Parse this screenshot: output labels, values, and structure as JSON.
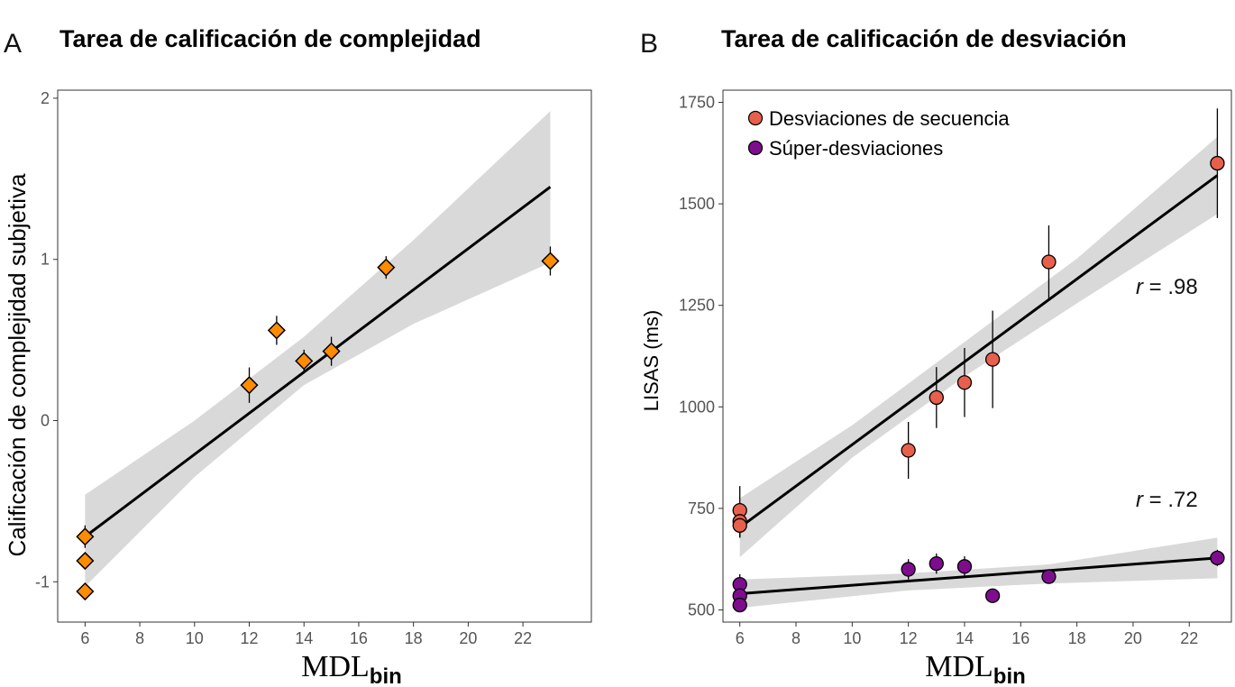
{
  "chart_data": [
    {
      "type": "scatter",
      "panel_label": "A",
      "title": "Tarea de calificación de complejidad",
      "xlabel_main": "MDL",
      "xlabel_sub": "bin",
      "ylabel": "Calificación de complejidad subjetiva",
      "xlim": [
        5,
        24.5
      ],
      "ylim": [
        -1.25,
        2.05
      ],
      "x_ticks": [
        6,
        8,
        10,
        12,
        14,
        16,
        18,
        20,
        22
      ],
      "y_ticks": [
        -1,
        0,
        1,
        2
      ],
      "marker": "diamond",
      "grid": false,
      "series": [
        {
          "color": "#ff8c00",
          "points": [
            {
              "x": 6,
              "y": -0.72,
              "err": 0.07
            },
            {
              "x": 6,
              "y": -0.87,
              "err": 0.05
            },
            {
              "x": 6,
              "y": -1.06,
              "err": 0.04
            },
            {
              "x": 12,
              "y": 0.22,
              "err": 0.11
            },
            {
              "x": 13,
              "y": 0.56,
              "err": 0.09
            },
            {
              "x": 14,
              "y": 0.37,
              "err": 0.07
            },
            {
              "x": 15,
              "y": 0.43,
              "err": 0.09
            },
            {
              "x": 17,
              "y": 0.95,
              "err": 0.07
            },
            {
              "x": 23,
              "y": 0.99,
              "err": 0.09
            }
          ],
          "fit": {
            "x0": 6,
            "y0": -0.72,
            "x1": 23,
            "y1": 1.45
          },
          "band": [
            {
              "x": 6,
              "lo": -1.03,
              "hi": -0.46
            },
            {
              "x": 10,
              "lo": -0.35,
              "hi": 0.0
            },
            {
              "x": 14,
              "lo": 0.22,
              "hi": 0.52
            },
            {
              "x": 18,
              "lo": 0.6,
              "hi": 1.12
            },
            {
              "x": 23,
              "lo": 0.98,
              "hi": 1.92
            }
          ]
        }
      ]
    },
    {
      "type": "scatter",
      "panel_label": "B",
      "title": "Tarea de calificación de desviación",
      "xlabel_main": "MDL",
      "xlabel_sub": "bin",
      "ylabel": "LISAS (ms)",
      "xlim": [
        5.4,
        23.5
      ],
      "ylim": [
        470,
        1780
      ],
      "x_ticks": [
        6,
        8,
        10,
        12,
        14,
        16,
        18,
        20,
        22
      ],
      "y_ticks": [
        500,
        750,
        1000,
        1250,
        1500,
        1750
      ],
      "marker": "circle",
      "grid": false,
      "legend_position": "top-left",
      "annotations": [
        "r = .98",
        "r = .72"
      ],
      "series": [
        {
          "name": "Desviaciones de secuencia",
          "color": "#e8604c",
          "points": [
            {
              "x": 6,
              "y": 745,
              "err": 60
            },
            {
              "x": 6,
              "y": 718,
              "err": 40
            },
            {
              "x": 6,
              "y": 708,
              "err": 30
            },
            {
              "x": 12,
              "y": 893,
              "err": 70
            },
            {
              "x": 13,
              "y": 1023,
              "err": 75
            },
            {
              "x": 14,
              "y": 1060,
              "err": 85
            },
            {
              "x": 15,
              "y": 1117,
              "err": 120
            },
            {
              "x": 17,
              "y": 1357,
              "err": 90
            },
            {
              "x": 23,
              "y": 1600,
              "err": 135
            }
          ],
          "fit": {
            "x0": 6,
            "y0": 703,
            "x1": 23,
            "y1": 1570
          },
          "band": [
            {
              "x": 6,
              "lo": 630,
              "hi": 775
            },
            {
              "x": 10,
              "lo": 875,
              "hi": 955
            },
            {
              "x": 14,
              "lo": 1075,
              "hi": 1160
            },
            {
              "x": 18,
              "lo": 1255,
              "hi": 1365
            },
            {
              "x": 23,
              "lo": 1475,
              "hi": 1665
            }
          ]
        },
        {
          "name": "Súper-desviaciones",
          "color": "#7e0d8e",
          "points": [
            {
              "x": 6,
              "y": 563,
              "err": 25
            },
            {
              "x": 6,
              "y": 535,
              "err": 15
            },
            {
              "x": 6,
              "y": 512,
              "err": 10
            },
            {
              "x": 12,
              "y": 600,
              "err": 25
            },
            {
              "x": 13,
              "y": 614,
              "err": 25
            },
            {
              "x": 14,
              "y": 607,
              "err": 25
            },
            {
              "x": 15,
              "y": 535,
              "err": 10
            },
            {
              "x": 17,
              "y": 582,
              "err": 15
            },
            {
              "x": 23,
              "y": 628,
              "err": 20
            }
          ],
          "fit": {
            "x0": 6,
            "y0": 540,
            "x1": 23,
            "y1": 628
          },
          "band": [
            {
              "x": 6,
              "lo": 505,
              "hi": 575
            },
            {
              "x": 12,
              "lo": 548,
              "hi": 590
            },
            {
              "x": 17,
              "lo": 565,
              "hi": 612
            },
            {
              "x": 23,
              "lo": 578,
              "hi": 678
            }
          ]
        }
      ]
    }
  ]
}
